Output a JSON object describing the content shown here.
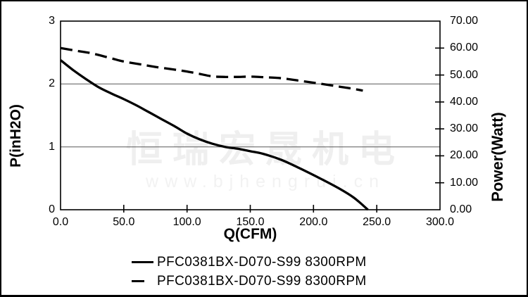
{
  "watermark": {
    "line1": "恒瑞宏晟机电",
    "line2": "www.bjhengrui.cn"
  },
  "chart_data": {
    "type": "line",
    "title": "",
    "xlabel": "Q(CFM)",
    "ylabel_left": "P(inH2O)",
    "ylabel_right": "Power(Watt)",
    "x_range": [
      0,
      300
    ],
    "y_left_range": [
      0,
      3
    ],
    "y_right_range": [
      0,
      70
    ],
    "x_tick_labels": [
      "0.0",
      "50.0",
      "100.0",
      "150.0",
      "200.0",
      "250.0",
      "300.0"
    ],
    "y_left_tick_labels": [
      "3",
      "2",
      "1",
      "0"
    ],
    "y_right_tick_labels": [
      "70.00",
      "60.00",
      "50.00",
      "40.00",
      "30.00",
      "20.00",
      "10.00",
      "0.00"
    ],
    "gridlines_at_left_values": [
      1,
      2
    ],
    "grid": "horizontal-only",
    "legend_position": "bottom",
    "legend": [
      {
        "label": "PFC0381BX-D070-S99 8300RPM",
        "style": "solid"
      },
      {
        "label": "PFC0381BX-D070-S99 8300RPM",
        "style": "dashed"
      }
    ],
    "series": [
      {
        "name": "PFC0381BX-D070-S99 8300RPM",
        "axis": "left",
        "style": "solid",
        "unit": "inH2O",
        "points": [
          [
            0,
            2.38
          ],
          [
            10,
            2.22
          ],
          [
            20,
            2.08
          ],
          [
            30,
            1.95
          ],
          [
            40,
            1.85
          ],
          [
            50,
            1.76
          ],
          [
            60,
            1.66
          ],
          [
            70,
            1.55
          ],
          [
            80,
            1.44
          ],
          [
            90,
            1.33
          ],
          [
            100,
            1.21
          ],
          [
            110,
            1.12
          ],
          [
            120,
            1.05
          ],
          [
            130,
            1.0
          ],
          [
            140,
            0.97
          ],
          [
            150,
            0.93
          ],
          [
            160,
            0.89
          ],
          [
            175,
            0.79
          ],
          [
            190,
            0.65
          ],
          [
            205,
            0.5
          ],
          [
            220,
            0.34
          ],
          [
            232,
            0.19
          ],
          [
            243,
            0.0
          ]
        ]
      },
      {
        "name": "PFC0381BX-D070-S99 8300RPM",
        "axis": "right",
        "style": "dashed",
        "unit": "Watt",
        "points": [
          [
            0,
            60.0
          ],
          [
            15,
            58.8
          ],
          [
            25,
            58.0
          ],
          [
            40,
            56.2
          ],
          [
            50,
            55.0
          ],
          [
            65,
            53.8
          ],
          [
            75,
            53.0
          ],
          [
            90,
            52.0
          ],
          [
            100,
            51.3
          ],
          [
            110,
            50.4
          ],
          [
            120,
            49.5
          ],
          [
            130,
            49.3
          ],
          [
            140,
            49.3
          ],
          [
            150,
            49.4
          ],
          [
            160,
            49.2
          ],
          [
            175,
            48.8
          ],
          [
            190,
            47.8
          ],
          [
            205,
            46.8
          ],
          [
            220,
            45.7
          ],
          [
            230,
            45.0
          ],
          [
            239,
            44.2
          ]
        ]
      }
    ],
    "colors": {
      "curve": "#000000",
      "grid": "#595959",
      "axis": "#000000",
      "watermark_cn": "#efefef",
      "watermark_url": "#f2f2f2",
      "background": "#ffffff"
    }
  }
}
